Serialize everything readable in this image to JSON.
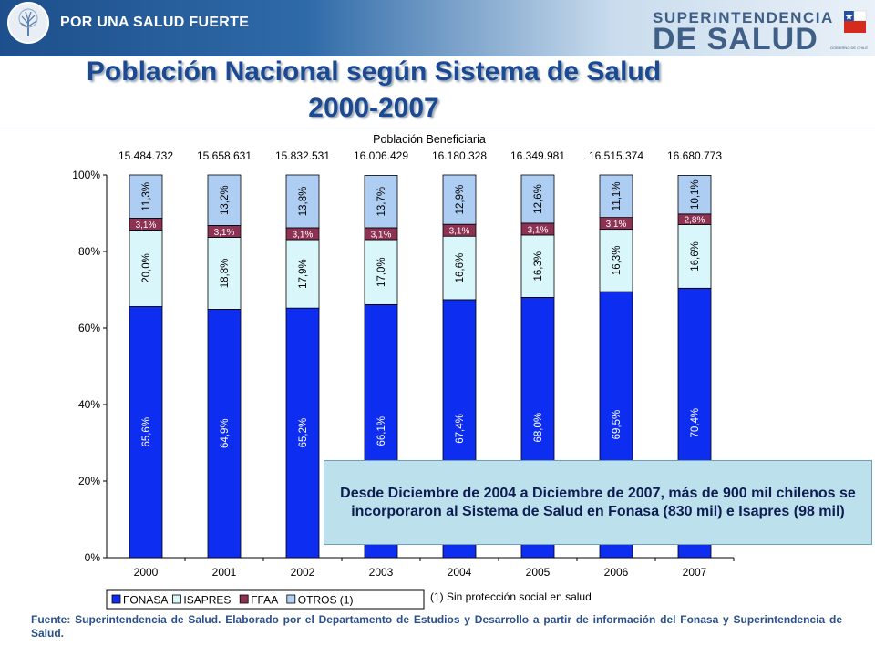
{
  "header": {
    "left_logo_text": "POR UNA SALUD FUERTE",
    "right_logo_line1": "SUPERINTENDENCIA",
    "right_logo_line2": "DE SALUD",
    "right_logo_caption": "GOBIERNO DE CHILE"
  },
  "title": {
    "line1": "Población Nacional según Sistema de Salud",
    "line2": "2000-2007"
  },
  "note": "Desde Diciembre de 2004 a Diciembre de 2007, más de 900 mil chilenos se incorporaron al Sistema de Salud en Fonasa (830 mil) e Isapres (98 mil)",
  "source": "Fuente: Superintendencia de Salud. Elaborado por el Departamento de Estudios y Desarrollo a partir de información del Fonasa y Superintendencia de Salud.",
  "colors": {
    "header_dark": "#1d4f8c",
    "title": "#1b4a92",
    "note_bg": "#bde1ec"
  },
  "chart_data": {
    "type": "bar",
    "stacked": true,
    "title": "Población Beneficiaria",
    "categories": [
      "2000",
      "2001",
      "2002",
      "2003",
      "2004",
      "2005",
      "2006",
      "2007"
    ],
    "totals": [
      "15.484.732",
      "15.658.631",
      "15.832.531",
      "16.006.429",
      "16.180.328",
      "16.349.981",
      "16.515.374",
      "16.680.773"
    ],
    "y_ticks": [
      "0%",
      "20%",
      "40%",
      "60%",
      "80%",
      "100%"
    ],
    "ylim": [
      0,
      100
    ],
    "grid": false,
    "legend_position": "bottom-left",
    "footnote": "(1) Sin protección social en salud",
    "series": [
      {
        "name": "FONASA",
        "color": "#0d2ef0",
        "values": [
          65.6,
          64.9,
          65.2,
          66.1,
          67.4,
          68.0,
          69.5,
          70.4
        ],
        "labels": [
          "65,6%",
          "64,9%",
          "65,2%",
          "66,1%",
          "67,4%",
          "68,0%",
          "69,5%",
          "70,4%"
        ]
      },
      {
        "name": "ISAPRES",
        "color": "#d9f6fb",
        "values": [
          20.0,
          18.8,
          17.9,
          17.0,
          16.6,
          16.3,
          16.3,
          16.6
        ],
        "labels": [
          "20,0%",
          "18,8%",
          "17,9%",
          "17,0%",
          "16,6%",
          "16,3%",
          "16,3%",
          "16,6%"
        ]
      },
      {
        "name": "FFAA",
        "color": "#8e3253",
        "values": [
          3.1,
          3.1,
          3.1,
          3.1,
          3.1,
          3.1,
          3.1,
          2.8
        ],
        "labels": [
          "3,1%",
          "3,1%",
          "3,1%",
          "3,1%",
          "3,1%",
          "3,1%",
          "3,1%",
          "2,8%"
        ]
      },
      {
        "name": "OTROS (1)",
        "color": "#aecdf2",
        "values": [
          11.3,
          13.2,
          13.8,
          13.7,
          12.9,
          12.6,
          11.1,
          10.1
        ],
        "labels": [
          "11,3%",
          "13,2%",
          "13,8%",
          "13,7%",
          "12,9%",
          "12,6%",
          "11,1%",
          "10,1%"
        ]
      }
    ]
  }
}
